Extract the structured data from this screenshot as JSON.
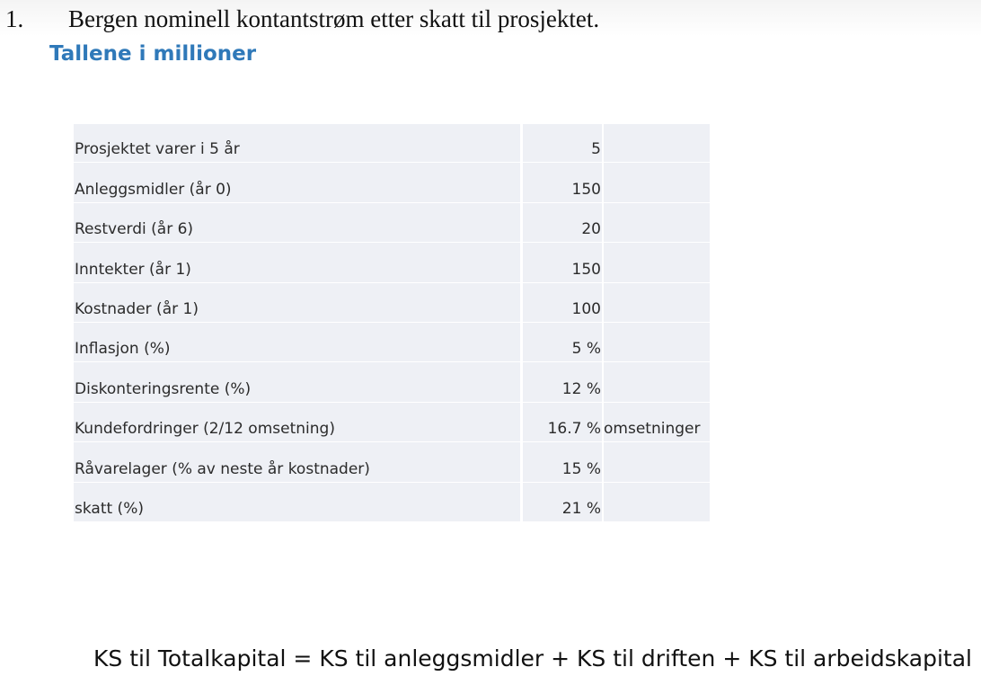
{
  "heading": {
    "number": "1.",
    "title": "Bergen nominell kontantstrøm etter skatt til prosjektet."
  },
  "subheading": "Tallene i millioner",
  "table": {
    "rows": [
      {
        "label": "Prosjektet  varer i 5 år",
        "value": "5",
        "note": ""
      },
      {
        "label": "Anleggsmidler (år 0)",
        "value": "150",
        "note": ""
      },
      {
        "label": "Restverdi (år 6)",
        "value": "20",
        "note": ""
      },
      {
        "label": "Inntekter (år 1)",
        "value": "150",
        "note": ""
      },
      {
        "label": "Kostnader (år 1)",
        "value": "100",
        "note": ""
      },
      {
        "label": "Inflasjon (%)",
        "value": "5 %",
        "note": ""
      },
      {
        "label": "Diskonteringsrente (%)",
        "value": "12 %",
        "note": ""
      },
      {
        "label": "Kundefordringer (2/12 omsetning)",
        "value": "16.7 %",
        "note": "omsetninger"
      },
      {
        "label": "Råvarelager (% av neste år kostnader)",
        "value": "15 %",
        "note": ""
      },
      {
        "label": "skatt (%)",
        "value": "21 %",
        "note": ""
      }
    ]
  },
  "formula": "KS til Totalkapital = KS til anleggsmidler + KS til driften + KS til arbeidskapital",
  "colors": {
    "subheading": "#2f79b9",
    "cell_background": "#eef0f5"
  }
}
